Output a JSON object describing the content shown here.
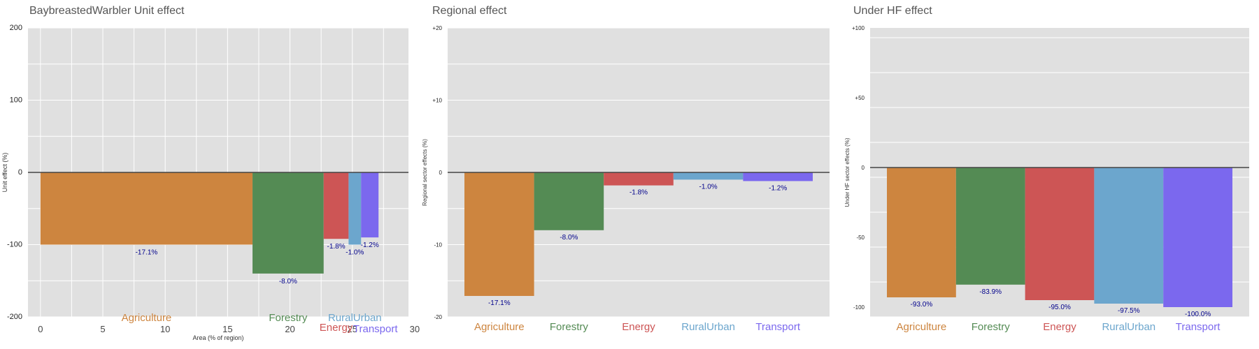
{
  "colors": {
    "agriculture": "#CD853F",
    "forestry": "#548B54",
    "energy": "#CD5555",
    "ruralurban": "#6CA6CD",
    "transport": "#7B68EE",
    "panel_bg": "#E0E0E0",
    "grid": "#FFFFFF",
    "label_text": "#00008B",
    "title_text": "#555555"
  },
  "chart_data": [
    {
      "type": "bar",
      "title": "BaybreastedWarbler Unit effect",
      "xlabel": "Area (% of region)",
      "ylabel": "Unit effect (%)",
      "ylim": [
        -200,
        200
      ],
      "xlim": [
        -1,
        29.5
      ],
      "yticks": [
        "200",
        "100",
        "0",
        "-100",
        "-200"
      ],
      "ytick_values": [
        200,
        100,
        0,
        -100,
        -200
      ],
      "xticks": [
        "0",
        "5",
        "10",
        "15",
        "20",
        "25",
        "30"
      ],
      "xtick_values": [
        0,
        5,
        10,
        15,
        20,
        25,
        30
      ],
      "grid": true,
      "bars": [
        {
          "sector": "Agriculture",
          "x_start": 0,
          "x_end": 17.0,
          "value": -100,
          "label": "-17.1%",
          "color_key": "agriculture"
        },
        {
          "sector": "Forestry",
          "x_start": 17.0,
          "x_end": 22.7,
          "value": -140,
          "label": "-8.0%",
          "color_key": "forestry"
        },
        {
          "sector": "Energy",
          "x_start": 22.7,
          "x_end": 24.7,
          "value": -92,
          "label": "-1.8%",
          "color_key": "energy"
        },
        {
          "sector": "RuralUrban",
          "x_start": 24.7,
          "x_end": 25.7,
          "value": -100,
          "label": "-1.0%",
          "color_key": "ruralurban"
        },
        {
          "sector": "Transport",
          "x_start": 25.7,
          "x_end": 27.1,
          "value": -90,
          "label": "-1.2%",
          "color_key": "transport"
        }
      ],
      "category_labels": [
        "Agriculture",
        "Forestry",
        "Energy",
        "RuralUrban",
        "Transport"
      ]
    },
    {
      "type": "bar",
      "title": "Regional effect",
      "xlabel": "",
      "ylabel": "Regional sector effects (%)",
      "ylim": [
        -20,
        20
      ],
      "yticks": [
        "+20",
        "+10",
        "0",
        "-10",
        "-20"
      ],
      "ytick_values": [
        20,
        10,
        0,
        -10,
        -20
      ],
      "grid": true,
      "categories": [
        "Agriculture",
        "Forestry",
        "Energy",
        "RuralUrban",
        "Transport"
      ],
      "values": [
        -17.1,
        -8.0,
        -1.8,
        -1.0,
        -1.2
      ],
      "labels": [
        "-17.1%",
        "-8.0%",
        "-1.8%",
        "-1.0%",
        "-1.2%"
      ]
    },
    {
      "type": "bar",
      "title": "Under HF effect",
      "xlabel": "",
      "ylabel": "Under HF sector effects (%)",
      "ylim": [
        -107,
        100
      ],
      "yticks": [
        "+100",
        "+50",
        "0",
        "-50",
        "-100"
      ],
      "ytick_values": [
        100,
        50,
        0,
        -50,
        -100
      ],
      "grid": true,
      "categories": [
        "Agriculture",
        "Forestry",
        "Energy",
        "RuralUrban",
        "Transport"
      ],
      "values": [
        -93.0,
        -83.9,
        -95.0,
        -97.5,
        -100.0
      ],
      "labels": [
        "-93.0%",
        "-83.9%",
        "-95.0%",
        "-97.5%",
        "-100.0%"
      ]
    }
  ]
}
